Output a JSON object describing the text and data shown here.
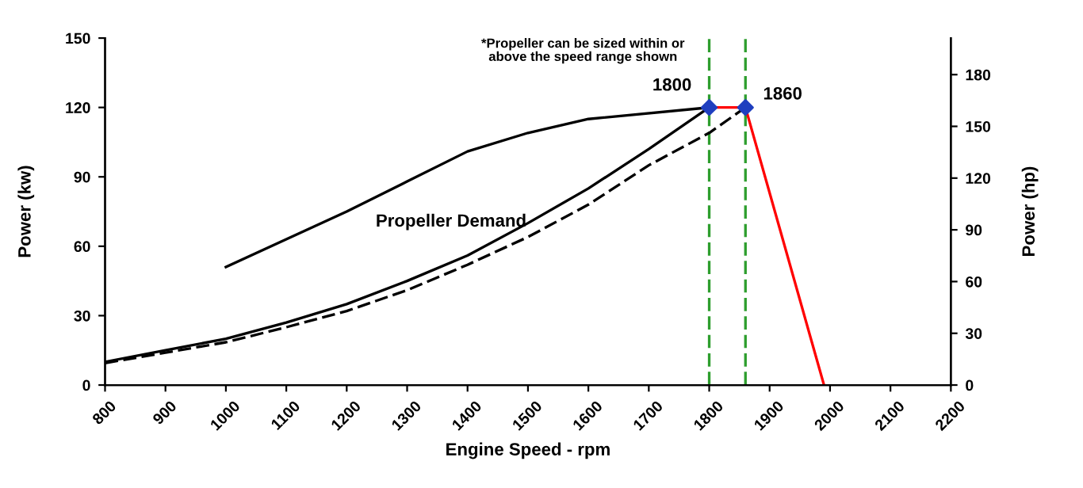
{
  "chart_data": {
    "type": "line",
    "xlabel": "Engine Speed - rpm",
    "ylabel": "Power (kw)",
    "y2label": "Power (hp)",
    "xlim": [
      800,
      2200
    ],
    "xticks": [
      800,
      900,
      1000,
      1100,
      1200,
      1300,
      1400,
      1500,
      1600,
      1700,
      1800,
      1900,
      2000,
      2100,
      2200
    ],
    "ylim": [
      0,
      150
    ],
    "yticks": [
      0,
      30,
      60,
      90,
      120,
      150
    ],
    "y2lim": [
      0,
      201.2
    ],
    "y2ticks": [
      0,
      30,
      60,
      90,
      120,
      150,
      180
    ],
    "grid": false,
    "legend": false,
    "series": [
      {
        "color": "#000000",
        "line_style": "solid",
        "marker": "none",
        "x": [
          1000,
          1100,
          1200,
          1300,
          1400,
          1500,
          1600,
          1800
        ],
        "values": [
          51,
          63,
          75,
          88,
          101,
          109,
          115,
          120
        ]
      },
      {
        "color": "#000000",
        "line_style": "solid",
        "marker": "none",
        "x": [
          800,
          900,
          1000,
          1100,
          1200,
          1300,
          1400,
          1500,
          1600,
          1700,
          1800
        ],
        "values": [
          10,
          15,
          20,
          27,
          35,
          45,
          56,
          70,
          85,
          102,
          120
        ]
      },
      {
        "color": "#000000",
        "line_style": "dashed",
        "marker": "none",
        "x": [
          800,
          900,
          1000,
          1100,
          1200,
          1300,
          1400,
          1500,
          1600,
          1700,
          1800,
          1860
        ],
        "values": [
          9.5,
          14,
          18.5,
          25,
          32,
          41,
          52,
          64,
          78,
          95,
          109,
          120
        ]
      },
      {
        "color": "#ff0000",
        "line_style": "solid",
        "marker": "none",
        "x": [
          1800,
          1860,
          1990
        ],
        "values": [
          120,
          120,
          0
        ]
      },
      {
        "type": "scatter",
        "color": "#1f3fbf",
        "marker": "diamond",
        "x": [
          1800,
          1860
        ],
        "values": [
          120,
          120
        ]
      }
    ],
    "ref_lines": [
      {
        "axis": "x",
        "value": 1800,
        "color": "#2e9e2e",
        "line_style": "dashed"
      },
      {
        "axis": "x",
        "value": 1860,
        "color": "#2e9e2e",
        "line_style": "dashed"
      }
    ],
    "annotations": [
      "*Propeller can be sized within or\nabove the speed range shown",
      "Propeller Demand",
      {
        "text": "1800",
        "x": 1800,
        "y": 120
      },
      {
        "text": "1860",
        "x": 1860,
        "y": 120
      }
    ]
  }
}
